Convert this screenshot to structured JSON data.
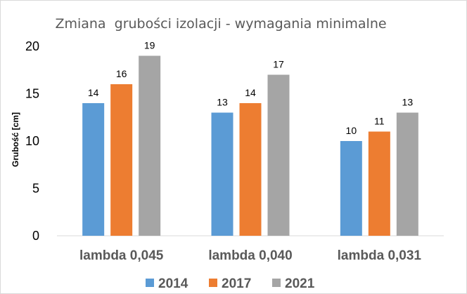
{
  "chart_data": {
    "type": "bar",
    "title": "Zmiana  grubości izolacji - wymagania minimalne",
    "ylabel": "Grubość [cm]",
    "xlabel": "",
    "categories": [
      "lambda 0,045",
      "lambda 0,040",
      "lambda 0,031"
    ],
    "series": [
      {
        "name": "2014",
        "values": [
          14,
          13,
          10
        ],
        "color": "#5b9bd5"
      },
      {
        "name": "2017",
        "values": [
          16,
          14,
          11
        ],
        "color": "#ed7d31"
      },
      {
        "name": "2021",
        "values": [
          19,
          17,
          13
        ],
        "color": "#a5a5a5"
      }
    ],
    "ylim": [
      0,
      20
    ],
    "yticks": [
      "0",
      "5",
      "10",
      "15",
      "20"
    ],
    "grid": false,
    "legend_position": "bottom"
  }
}
